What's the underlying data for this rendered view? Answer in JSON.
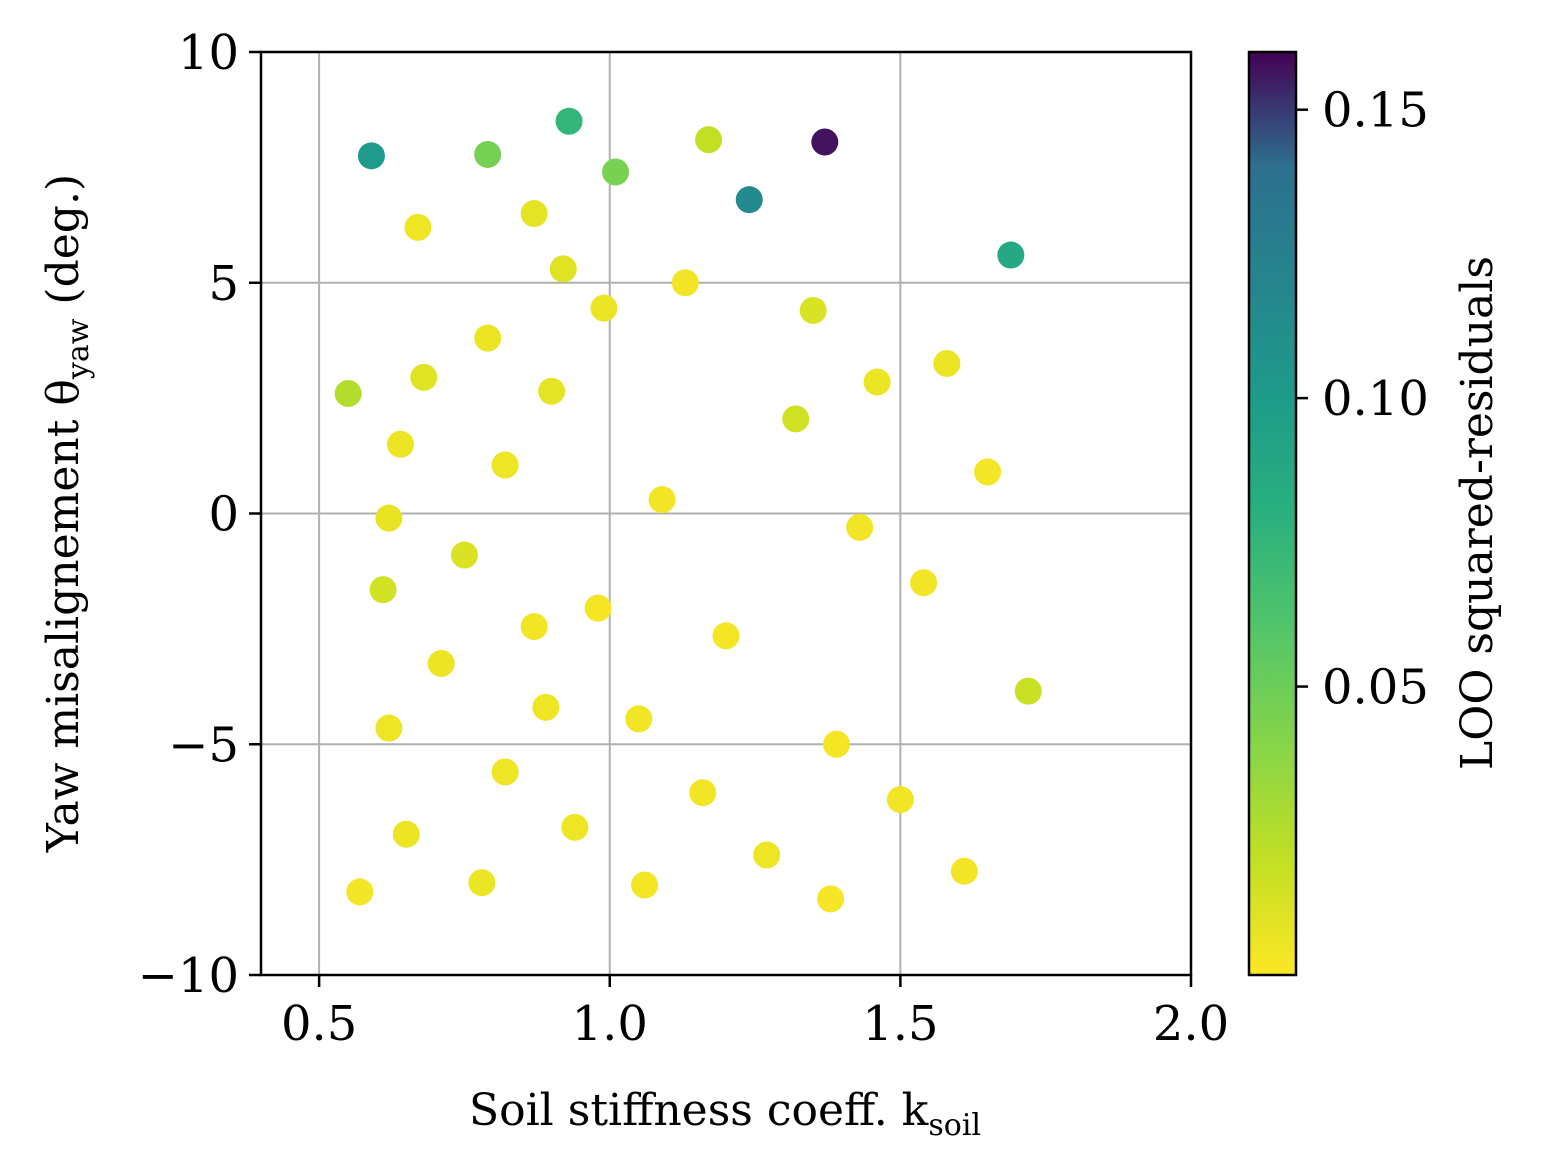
{
  "chart_data": {
    "type": "scatter",
    "xlabel": "Soil stiffness coeff. k",
    "xlabel_sub": "soil",
    "ylabel": "Yaw misalignement θ",
    "ylabel_sub": "yaw",
    "ylabel_suffix": "(deg.)",
    "colorbar_label": "LOO squared-residuals",
    "xlim": [
      0.4,
      2.0
    ],
    "ylim": [
      -10,
      10
    ],
    "xticks": [
      0.5,
      1.0,
      1.5,
      2.0
    ],
    "xtick_labels": [
      "0.5",
      "1.0",
      "1.5",
      "2.0"
    ],
    "yticks": [
      -10,
      -5,
      0,
      5,
      10
    ],
    "ytick_labels": [
      "−10",
      "−5",
      "0",
      "5",
      "10"
    ],
    "colorbar_range": [
      0.0,
      0.16
    ],
    "colorbar_ticks": [
      0.05,
      0.1,
      0.15
    ],
    "colorbar_tick_labels": [
      "0.05",
      "0.10",
      "0.15"
    ],
    "colormap": "viridis_r",
    "grid": true,
    "points": [
      {
        "x": 0.59,
        "y": 7.75,
        "v": 0.1
      },
      {
        "x": 0.79,
        "y": 7.78,
        "v": 0.046
      },
      {
        "x": 0.93,
        "y": 8.5,
        "v": 0.075
      },
      {
        "x": 1.01,
        "y": 7.4,
        "v": 0.045
      },
      {
        "x": 1.17,
        "y": 8.1,
        "v": 0.02
      },
      {
        "x": 1.37,
        "y": 8.05,
        "v": 0.158
      },
      {
        "x": 1.24,
        "y": 6.8,
        "v": 0.115
      },
      {
        "x": 1.69,
        "y": 5.6,
        "v": 0.088
      },
      {
        "x": 0.67,
        "y": 6.2,
        "v": 0.005
      },
      {
        "x": 0.87,
        "y": 6.5,
        "v": 0.008
      },
      {
        "x": 0.92,
        "y": 5.3,
        "v": 0.01
      },
      {
        "x": 1.13,
        "y": 5.0,
        "v": 0.004
      },
      {
        "x": 0.99,
        "y": 4.45,
        "v": 0.006
      },
      {
        "x": 1.35,
        "y": 4.4,
        "v": 0.012
      },
      {
        "x": 0.79,
        "y": 3.8,
        "v": 0.006
      },
      {
        "x": 0.55,
        "y": 2.6,
        "v": 0.025
      },
      {
        "x": 0.68,
        "y": 2.95,
        "v": 0.01
      },
      {
        "x": 0.9,
        "y": 2.65,
        "v": 0.008
      },
      {
        "x": 1.46,
        "y": 2.85,
        "v": 0.006
      },
      {
        "x": 1.58,
        "y": 3.25,
        "v": 0.006
      },
      {
        "x": 1.32,
        "y": 2.05,
        "v": 0.015
      },
      {
        "x": 0.64,
        "y": 1.5,
        "v": 0.006
      },
      {
        "x": 0.82,
        "y": 1.05,
        "v": 0.005
      },
      {
        "x": 1.65,
        "y": 0.9,
        "v": 0.003
      },
      {
        "x": 1.09,
        "y": 0.3,
        "v": 0.004
      },
      {
        "x": 0.62,
        "y": -0.1,
        "v": 0.007
      },
      {
        "x": 1.43,
        "y": -0.3,
        "v": 0.004
      },
      {
        "x": 0.75,
        "y": -0.9,
        "v": 0.012
      },
      {
        "x": 0.61,
        "y": -1.65,
        "v": 0.015
      },
      {
        "x": 1.54,
        "y": -1.5,
        "v": 0.004
      },
      {
        "x": 0.98,
        "y": -2.05,
        "v": 0.003
      },
      {
        "x": 0.87,
        "y": -2.45,
        "v": 0.004
      },
      {
        "x": 1.2,
        "y": -2.65,
        "v": 0.003
      },
      {
        "x": 0.71,
        "y": -3.25,
        "v": 0.006
      },
      {
        "x": 1.72,
        "y": -3.85,
        "v": 0.018
      },
      {
        "x": 0.89,
        "y": -4.2,
        "v": 0.005
      },
      {
        "x": 1.05,
        "y": -4.45,
        "v": 0.004
      },
      {
        "x": 0.62,
        "y": -4.65,
        "v": 0.005
      },
      {
        "x": 1.39,
        "y": -5.0,
        "v": 0.003
      },
      {
        "x": 0.82,
        "y": -5.6,
        "v": 0.005
      },
      {
        "x": 1.16,
        "y": -6.05,
        "v": 0.004
      },
      {
        "x": 1.5,
        "y": -6.2,
        "v": 0.004
      },
      {
        "x": 0.65,
        "y": -6.95,
        "v": 0.006
      },
      {
        "x": 0.94,
        "y": -6.8,
        "v": 0.005
      },
      {
        "x": 1.27,
        "y": -7.4,
        "v": 0.005
      },
      {
        "x": 1.61,
        "y": -7.75,
        "v": 0.004
      },
      {
        "x": 0.57,
        "y": -8.2,
        "v": 0.004
      },
      {
        "x": 0.78,
        "y": -8.0,
        "v": 0.006
      },
      {
        "x": 1.06,
        "y": -8.05,
        "v": 0.003
      },
      {
        "x": 1.38,
        "y": -8.35,
        "v": 0.002
      }
    ]
  }
}
